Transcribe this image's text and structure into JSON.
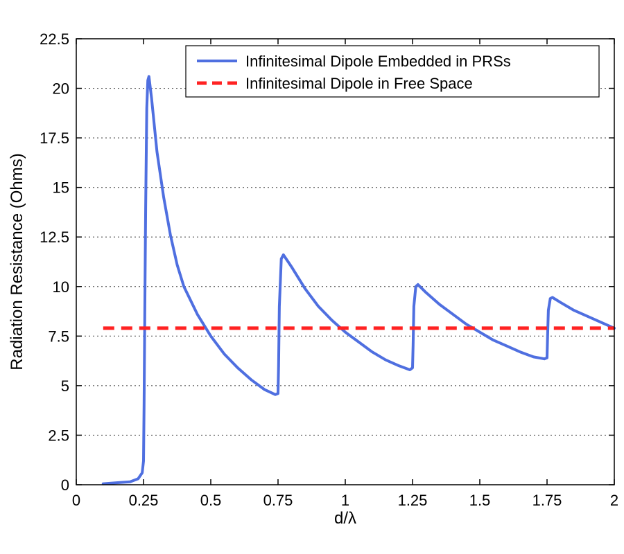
{
  "chart_data": {
    "type": "line",
    "title": "",
    "xlabel": "d/λ",
    "ylabel": "Radiation Resistance (Ohms)",
    "xlim": [
      0,
      2
    ],
    "ylim": [
      0,
      22.5
    ],
    "x_ticks": [
      0,
      0.25,
      0.5,
      0.75,
      1,
      1.25,
      1.5,
      1.75,
      2
    ],
    "x_tick_labels": [
      "0",
      "0.25",
      "0.5",
      "0.75",
      "1",
      "1.25",
      "1.5",
      "1.75",
      "2"
    ],
    "y_ticks": [
      0,
      2.5,
      5,
      7.5,
      10,
      12.5,
      15,
      17.5,
      20,
      22.5
    ],
    "y_tick_labels": [
      "0",
      "2.5",
      "5",
      "7.5",
      "10",
      "12.5",
      "15",
      "17.5",
      "20",
      "22.5"
    ],
    "grid": "horizontal-dotted",
    "legend_position": "top-right",
    "series": [
      {
        "name": "Infinitesimal Dipole Embedded in PRSs",
        "color": "#4f6fe0",
        "style": "solid",
        "x": [
          0.1,
          0.15,
          0.2,
          0.23,
          0.245,
          0.25,
          0.252,
          0.255,
          0.258,
          0.262,
          0.266,
          0.27,
          0.28,
          0.3,
          0.325,
          0.35,
          0.375,
          0.4,
          0.45,
          0.5,
          0.55,
          0.6,
          0.65,
          0.7,
          0.74,
          0.75,
          0.752,
          0.755,
          0.762,
          0.77,
          0.8,
          0.85,
          0.9,
          0.95,
          1.0,
          1.05,
          1.1,
          1.15,
          1.2,
          1.24,
          1.25,
          1.252,
          1.255,
          1.262,
          1.27,
          1.3,
          1.35,
          1.4,
          1.45,
          1.5,
          1.55,
          1.6,
          1.65,
          1.7,
          1.74,
          1.75,
          1.752,
          1.755,
          1.762,
          1.77,
          1.8,
          1.85,
          1.9,
          1.95,
          2.0
        ],
        "y": [
          0.05,
          0.1,
          0.15,
          0.3,
          0.6,
          1.2,
          4.0,
          9.0,
          14.0,
          19.0,
          20.4,
          20.6,
          19.5,
          16.8,
          14.5,
          12.6,
          11.1,
          10.0,
          8.6,
          7.5,
          6.6,
          5.9,
          5.3,
          4.8,
          4.55,
          4.6,
          6.0,
          9.0,
          11.4,
          11.6,
          11.0,
          9.9,
          9.0,
          8.3,
          7.7,
          7.2,
          6.7,
          6.3,
          6.0,
          5.8,
          5.9,
          7.0,
          9.0,
          10.0,
          10.1,
          9.7,
          9.1,
          8.6,
          8.1,
          7.7,
          7.3,
          7.0,
          6.7,
          6.45,
          6.35,
          6.4,
          7.5,
          8.8,
          9.4,
          9.45,
          9.2,
          8.8,
          8.5,
          8.2,
          7.9
        ]
      },
      {
        "name": "Infinitesimal Dipole in Free Space",
        "color": "#ff2222",
        "style": "dashed",
        "x": [
          0.1,
          2.0
        ],
        "y": [
          7.9,
          7.9
        ]
      }
    ]
  }
}
